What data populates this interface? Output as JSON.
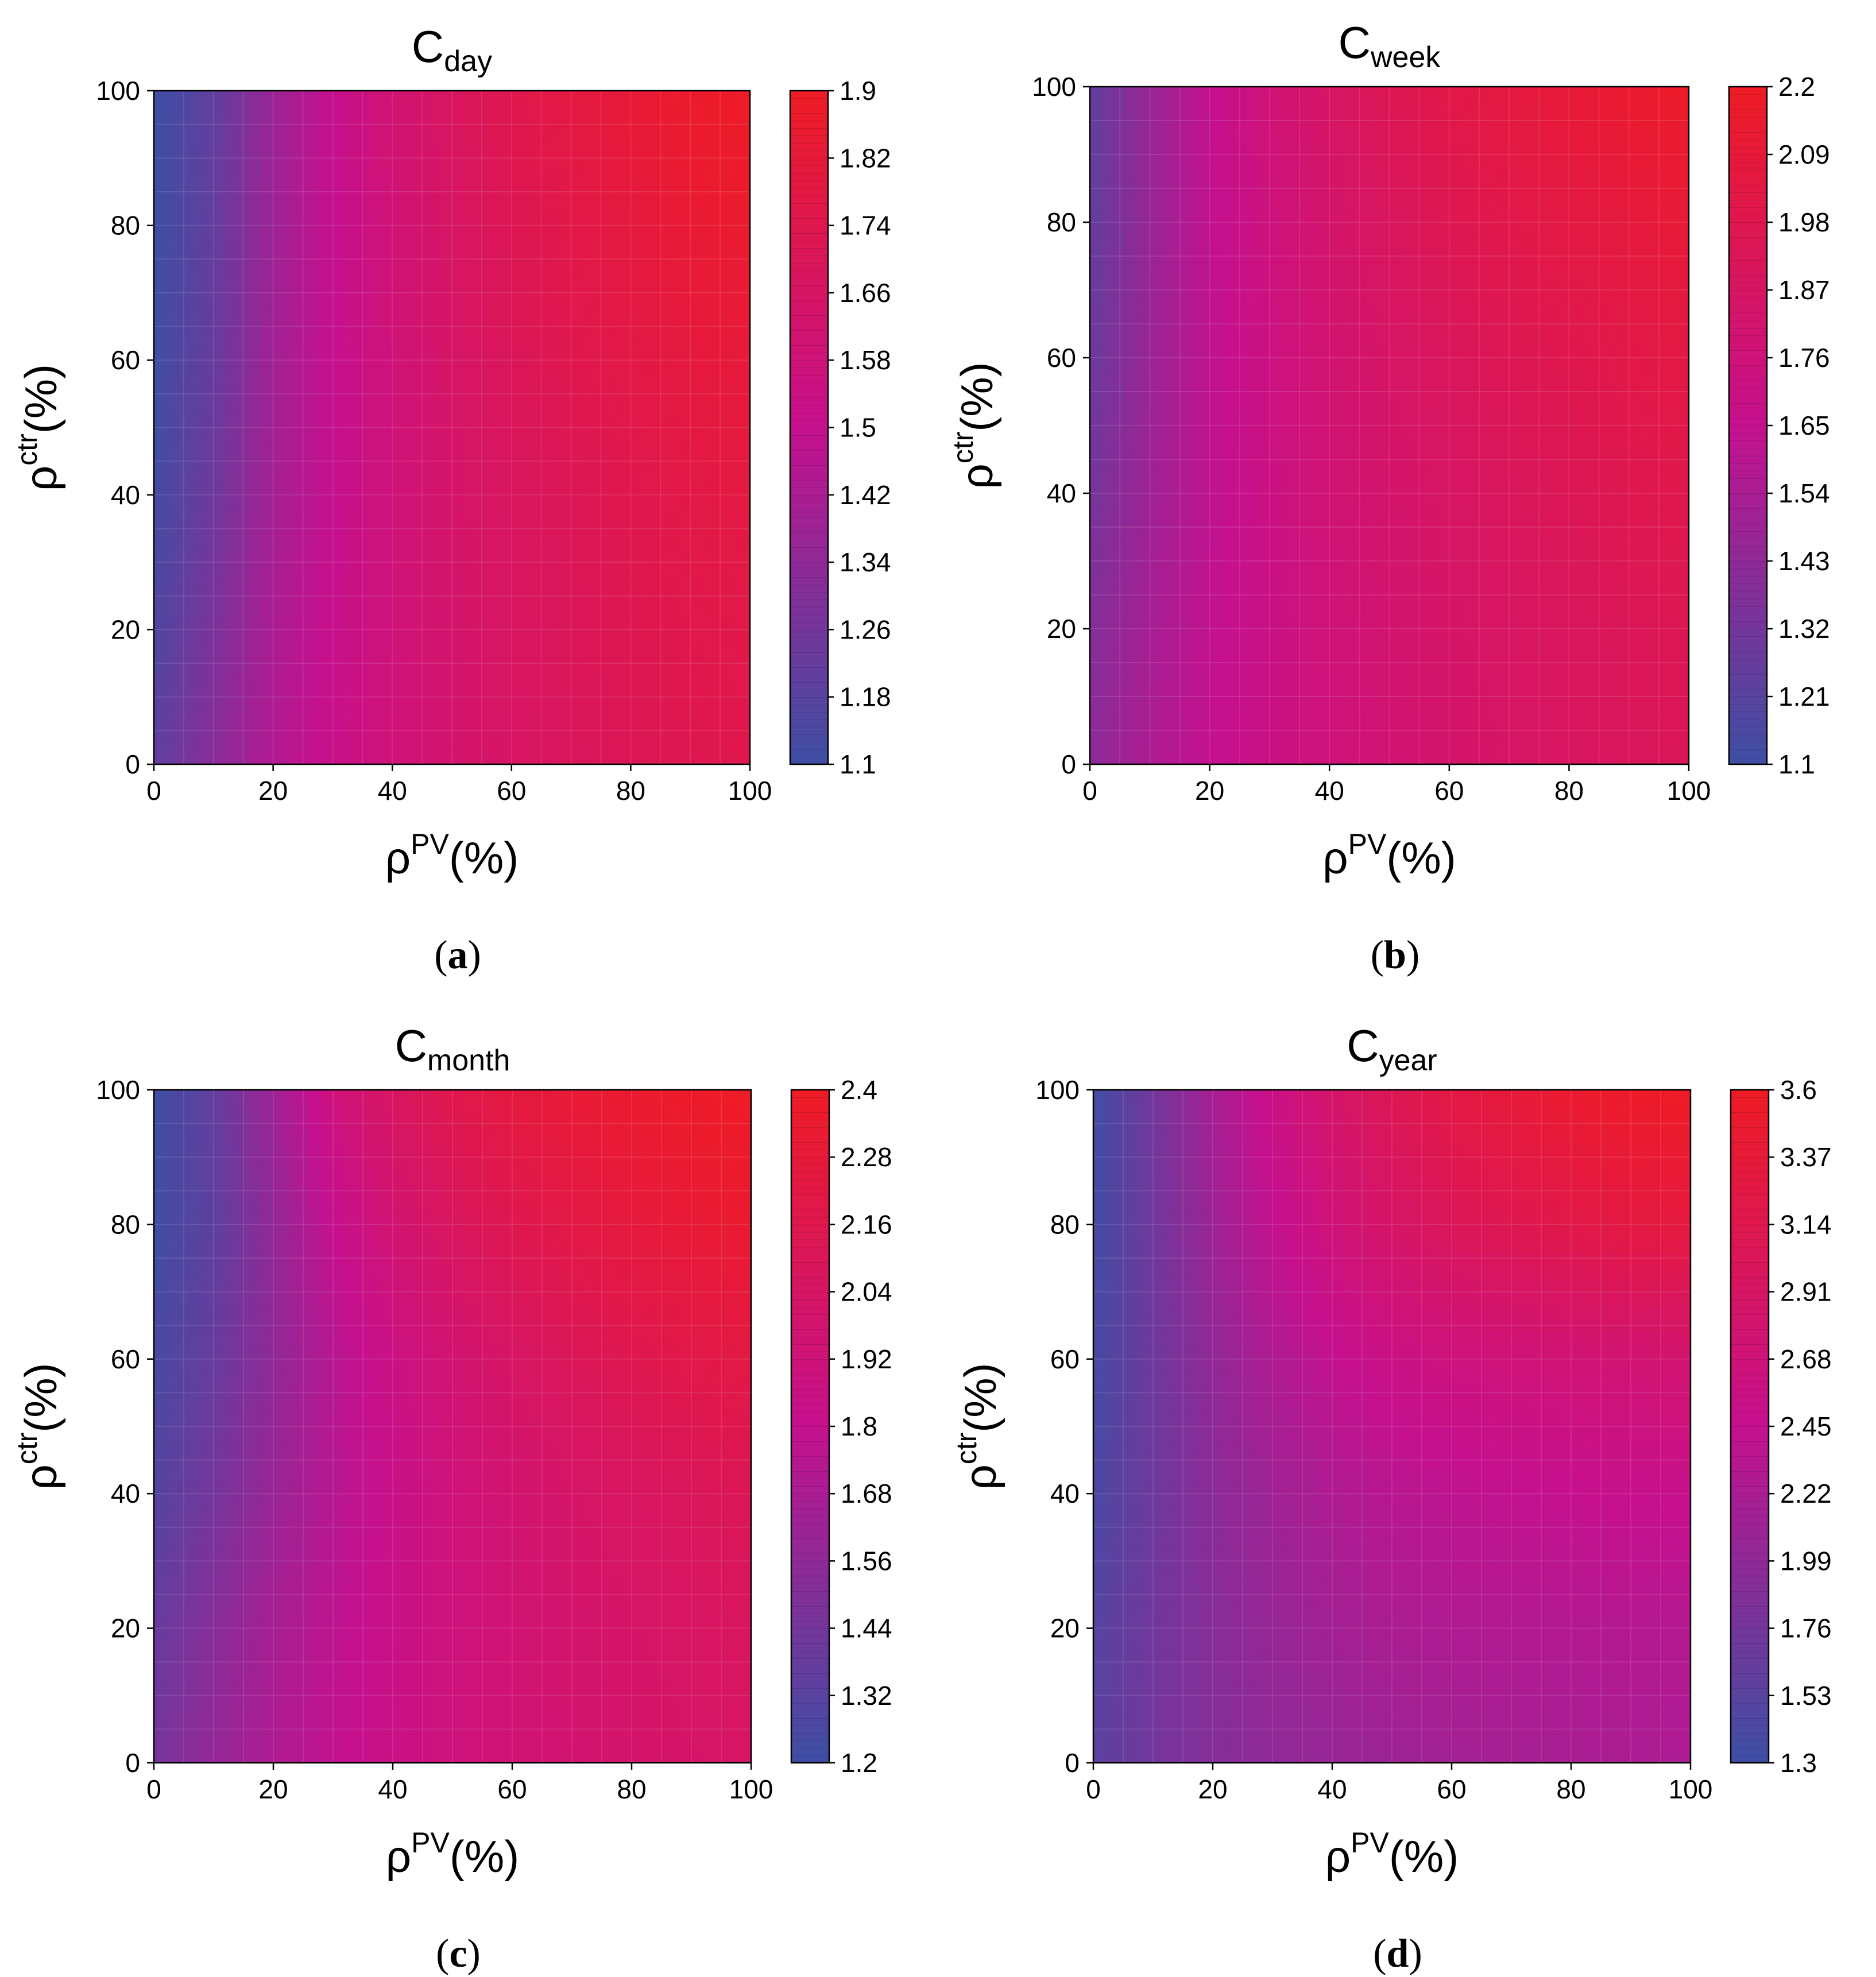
{
  "chart_data": [
    {
      "type": "heatmap",
      "panel_label": "a",
      "title": "C",
      "title_subscript": "day",
      "xlabel": "ρ",
      "xlabel_superscript": "PV",
      "xlabel_unit": "(%)",
      "ylabel": "ρ",
      "ylabel_superscript": "ctr",
      "ylabel_unit": "(%)",
      "xlim": [
        0,
        100
      ],
      "ylim": [
        0,
        100
      ],
      "xticks": [
        0,
        20,
        40,
        60,
        80,
        100
      ],
      "yticks": [
        0,
        20,
        40,
        60,
        80,
        100
      ],
      "colorbar": {
        "min": 1.1,
        "max": 1.9,
        "ticks": [
          1.1,
          1.18,
          1.26,
          1.34,
          1.42,
          1.5,
          1.58,
          1.66,
          1.74,
          1.82,
          1.9
        ]
      },
      "x": [
        0,
        10,
        20,
        30,
        40,
        50,
        60,
        70,
        80,
        90,
        100
      ],
      "y": [
        0,
        20,
        40,
        60,
        80,
        100
      ],
      "z": [
        [
          1.2,
          1.32,
          1.44,
          1.52,
          1.58,
          1.62,
          1.66,
          1.69,
          1.71,
          1.73,
          1.74
        ],
        [
          1.15,
          1.28,
          1.42,
          1.51,
          1.58,
          1.63,
          1.67,
          1.7,
          1.73,
          1.75,
          1.76
        ],
        [
          1.12,
          1.24,
          1.4,
          1.5,
          1.58,
          1.64,
          1.68,
          1.71,
          1.74,
          1.77,
          1.79
        ],
        [
          1.11,
          1.22,
          1.39,
          1.5,
          1.58,
          1.65,
          1.7,
          1.74,
          1.77,
          1.8,
          1.82
        ],
        [
          1.1,
          1.21,
          1.38,
          1.5,
          1.59,
          1.66,
          1.72,
          1.76,
          1.8,
          1.84,
          1.86
        ],
        [
          1.1,
          1.2,
          1.37,
          1.5,
          1.6,
          1.68,
          1.74,
          1.79,
          1.83,
          1.87,
          1.89
        ]
      ]
    },
    {
      "type": "heatmap",
      "panel_label": "b",
      "title": "C",
      "title_subscript": "week",
      "xlabel": "ρ",
      "xlabel_superscript": "PV",
      "xlabel_unit": "(%)",
      "ylabel": "ρ",
      "ylabel_superscript": "ctr",
      "ylabel_unit": "(%)",
      "xlim": [
        0,
        100
      ],
      "ylim": [
        0,
        100
      ],
      "xticks": [
        0,
        20,
        40,
        60,
        80,
        100
      ],
      "yticks": [
        0,
        20,
        40,
        60,
        80,
        100
      ],
      "colorbar": {
        "min": 1.1,
        "max": 2.2,
        "ticks": [
          1.1,
          1.21,
          1.32,
          1.43,
          1.54,
          1.65,
          1.76,
          1.87,
          1.98,
          2.09,
          2.2
        ]
      },
      "x": [
        0,
        10,
        20,
        30,
        40,
        50,
        60,
        70,
        80,
        90,
        100
      ],
      "y": [
        0,
        20,
        40,
        60,
        80,
        100
      ],
      "z": [
        [
          1.42,
          1.55,
          1.64,
          1.7,
          1.75,
          1.79,
          1.83,
          1.86,
          1.89,
          1.91,
          1.93
        ],
        [
          1.38,
          1.52,
          1.63,
          1.7,
          1.76,
          1.81,
          1.85,
          1.88,
          1.91,
          1.93,
          1.95
        ],
        [
          1.32,
          1.49,
          1.62,
          1.71,
          1.78,
          1.83,
          1.87,
          1.91,
          1.94,
          1.97,
          1.99
        ],
        [
          1.28,
          1.47,
          1.62,
          1.72,
          1.8,
          1.86,
          1.91,
          1.95,
          1.98,
          2.01,
          2.04
        ],
        [
          1.25,
          1.46,
          1.63,
          1.74,
          1.83,
          1.9,
          1.96,
          2.0,
          2.04,
          2.07,
          2.1
        ],
        [
          1.24,
          1.46,
          1.64,
          1.77,
          1.87,
          1.95,
          2.01,
          2.06,
          2.1,
          2.14,
          2.17
        ]
      ]
    },
    {
      "type": "heatmap",
      "panel_label": "c",
      "title": "C",
      "title_subscript": "month",
      "xlabel": "ρ",
      "xlabel_superscript": "PV",
      "xlabel_unit": "(%)",
      "ylabel": "ρ",
      "ylabel_superscript": "ctr",
      "ylabel_unit": "(%)",
      "xlim": [
        0,
        100
      ],
      "ylim": [
        0,
        100
      ],
      "xticks": [
        0,
        20,
        40,
        60,
        80,
        100
      ],
      "yticks": [
        0,
        20,
        40,
        60,
        80,
        100
      ],
      "colorbar": {
        "min": 1.2,
        "max": 2.4,
        "ticks": [
          1.2,
          1.32,
          1.44,
          1.56,
          1.68,
          1.8,
          1.92,
          2.04,
          2.16,
          2.28,
          2.4
        ]
      },
      "x": [
        0,
        10,
        20,
        30,
        40,
        50,
        60,
        70,
        80,
        90,
        100
      ],
      "y": [
        0,
        20,
        40,
        60,
        80,
        100
      ],
      "z": [
        [
          1.45,
          1.58,
          1.7,
          1.78,
          1.85,
          1.9,
          1.94,
          1.97,
          2.0,
          2.02,
          2.04
        ],
        [
          1.38,
          1.52,
          1.66,
          1.76,
          1.84,
          1.9,
          1.95,
          1.99,
          2.02,
          2.05,
          2.07
        ],
        [
          1.3,
          1.44,
          1.6,
          1.73,
          1.83,
          1.91,
          1.97,
          2.02,
          2.06,
          2.09,
          2.12
        ],
        [
          1.25,
          1.38,
          1.56,
          1.73,
          1.86,
          1.96,
          2.04,
          2.1,
          2.15,
          2.19,
          2.22
        ],
        [
          1.22,
          1.34,
          1.57,
          1.8,
          1.96,
          2.07,
          2.15,
          2.21,
          2.26,
          2.3,
          2.33
        ],
        [
          1.21,
          1.36,
          1.62,
          1.9,
          2.06,
          2.17,
          2.25,
          2.3,
          2.34,
          2.37,
          2.39
        ]
      ]
    },
    {
      "type": "heatmap",
      "panel_label": "d",
      "title": "C",
      "title_subscript": "year",
      "xlabel": "ρ",
      "xlabel_superscript": "PV",
      "xlabel_unit": "(%)",
      "ylabel": "ρ",
      "ylabel_superscript": "ctr",
      "ylabel_unit": "(%)",
      "xlim": [
        0,
        100
      ],
      "ylim": [
        0,
        100
      ],
      "xticks": [
        0,
        20,
        40,
        60,
        80,
        100
      ],
      "yticks": [
        0,
        20,
        40,
        60,
        80,
        100
      ],
      "colorbar": {
        "min": 1.3,
        "max": 3.6,
        "ticks": [
          1.3,
          1.53,
          1.76,
          1.99,
          2.22,
          2.45,
          2.68,
          2.91,
          3.14,
          3.37,
          3.6
        ]
      },
      "x": [
        0,
        10,
        20,
        30,
        40,
        50,
        60,
        70,
        80,
        90,
        100
      ],
      "y": [
        0,
        20,
        40,
        60,
        80,
        100
      ],
      "z": [
        [
          1.55,
          1.75,
          1.9,
          1.99,
          2.05,
          2.1,
          2.14,
          2.17,
          2.2,
          2.22,
          2.24
        ],
        [
          1.5,
          1.73,
          1.92,
          2.05,
          2.15,
          2.22,
          2.26,
          2.28,
          2.29,
          2.3,
          2.3
        ],
        [
          1.42,
          1.7,
          1.95,
          2.12,
          2.25,
          2.33,
          2.38,
          2.42,
          2.45,
          2.47,
          2.48
        ],
        [
          1.38,
          1.7,
          2.0,
          2.25,
          2.42,
          2.55,
          2.63,
          2.68,
          2.72,
          2.75,
          2.78
        ],
        [
          1.35,
          1.72,
          2.1,
          2.42,
          2.68,
          2.88,
          3.02,
          3.12,
          3.2,
          3.28,
          3.32
        ],
        [
          1.34,
          1.74,
          2.18,
          2.55,
          2.85,
          3.08,
          3.25,
          3.38,
          3.48,
          3.55,
          3.58
        ]
      ]
    }
  ]
}
